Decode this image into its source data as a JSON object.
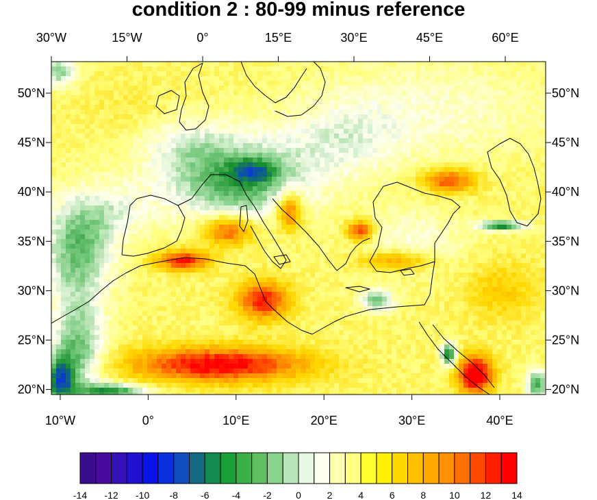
{
  "title": "condition 2 : 80-99 minus reference",
  "chart_data": {
    "type": "heatmap",
    "projection": "rotated lat-lon",
    "top_axis_labels": [
      "30°W",
      "15°W",
      "0°",
      "15°E",
      "30°E",
      "45°E",
      "60°E"
    ],
    "bottom_axis_labels": [
      "10°W",
      "0°",
      "10°E",
      "20°E",
      "30°E",
      "40°E"
    ],
    "left_axis_labels": [
      "50°N",
      "45°N",
      "40°N",
      "35°N",
      "30°N",
      "25°N",
      "20°N"
    ],
    "right_axis_labels": [
      "50°N",
      "45°N",
      "40°N",
      "35°N",
      "30°N",
      "25°N",
      "20°N"
    ],
    "x_range": [
      -11,
      45
    ],
    "lat_range": [
      19.5,
      53
    ],
    "colorbar": {
      "tick_labels": [
        "-14",
        "-12",
        "-10",
        "-8",
        "-6",
        "-4",
        "-2",
        "0",
        "2",
        "4",
        "6",
        "8",
        "10",
        "12",
        "14"
      ],
      "tick_values": [
        -14,
        -12,
        -10,
        -8,
        -6,
        -4,
        -2,
        0,
        2,
        4,
        6,
        8,
        10,
        12,
        14
      ],
      "colors": [
        "#3b0c8c",
        "#4a0aa0",
        "#3512b8",
        "#2010d0",
        "#0a14e8",
        "#0a32dc",
        "#104ec0",
        "#136a80",
        "#158a50",
        "#17a035",
        "#3cb044",
        "#5ec060",
        "#8ad38c",
        "#b8e4b8",
        "#e8f6e4",
        "#ffffee",
        "#ffffb0",
        "#ffff80",
        "#ffff30",
        "#fff000",
        "#ffd800",
        "#ffc000",
        "#ffa800",
        "#ff9000",
        "#ff7000",
        "#ff4800",
        "#ff2000",
        "#ff0000"
      ]
    },
    "field_color_scale": {
      "stops": [
        -14,
        -9,
        -6,
        -3,
        0,
        3,
        6,
        9,
        13
      ],
      "colors": [
        "#1010d8",
        "#0a40c8",
        "#18902c",
        "#7acb80",
        "#fdfff0",
        "#ffff80",
        "#ffd800",
        "#ff9800",
        "#ff0000"
      ]
    },
    "field": {
      "base": 3.5,
      "features": [
        {
          "x": 10,
          "lat": 41,
          "rx": 8,
          "rlat": 4,
          "v": -8
        },
        {
          "x": 12,
          "lat": 42,
          "rx": 2.5,
          "rlat": 1.2,
          "v": -5
        },
        {
          "x": 4,
          "lat": 45,
          "rx": 6,
          "rlat": 3,
          "v": -3
        },
        {
          "x": 22,
          "lat": 45,
          "rx": 7,
          "rlat": 4,
          "v": -3
        },
        {
          "x": 32,
          "lat": 48,
          "rx": 14,
          "rlat": 5,
          "v": -2.5
        },
        {
          "x": -10,
          "lat": 52,
          "rx": 2,
          "rlat": 1.5,
          "v": -6
        },
        {
          "x": -8,
          "lat": 34,
          "rx": 4,
          "rlat": 5,
          "v": -7
        },
        {
          "x": -4,
          "lat": 38,
          "rx": 5,
          "rlat": 3,
          "v": -3
        },
        {
          "x": -8,
          "lat": 24,
          "rx": 3,
          "rlat": 5,
          "v": -7
        },
        {
          "x": -10,
          "lat": 21,
          "rx": 1.6,
          "rlat": 2.2,
          "v": -10
        },
        {
          "x": -4,
          "lat": 19.8,
          "rx": 4,
          "rlat": 0.8,
          "v": -9
        },
        {
          "x": 30,
          "lat": 35,
          "rx": 6,
          "rlat": 3,
          "v": -3
        },
        {
          "x": 44,
          "lat": 20.5,
          "rx": 1.2,
          "rlat": 1.5,
          "v": -8
        },
        {
          "x": 34,
          "lat": 23.5,
          "rx": 0.9,
          "rlat": 1.2,
          "v": -10
        },
        {
          "x": 26,
          "lat": 29,
          "rx": 1.8,
          "rlat": 1.2,
          "v": -7
        },
        {
          "x": 40,
          "lat": 36.5,
          "rx": 2.5,
          "rlat": 0.5,
          "v": -10
        },
        {
          "x": 8,
          "lat": 22.5,
          "rx": 10,
          "rlat": 1.8,
          "v": 10
        },
        {
          "x": 4,
          "lat": 33,
          "rx": 3,
          "rlat": 1,
          "v": 9
        },
        {
          "x": 13,
          "lat": 29,
          "rx": 3,
          "rlat": 2,
          "v": 9
        },
        {
          "x": 9,
          "lat": 36,
          "rx": 3,
          "rlat": 1.5,
          "v": 8
        },
        {
          "x": 16,
          "lat": 38,
          "rx": 1.5,
          "rlat": 2,
          "v": 8
        },
        {
          "x": 37,
          "lat": 21.5,
          "rx": 2,
          "rlat": 2,
          "v": 12
        },
        {
          "x": 24,
          "lat": 36,
          "rx": 1.5,
          "rlat": 1,
          "v": 9
        },
        {
          "x": 28,
          "lat": 33,
          "rx": 4,
          "rlat": 1,
          "v": 6
        },
        {
          "x": 34,
          "lat": 41,
          "rx": 3,
          "rlat": 1.2,
          "v": 8
        },
        {
          "x": 40,
          "lat": 30,
          "rx": 4,
          "rlat": 3,
          "v": 3
        },
        {
          "x": -2,
          "lat": 48,
          "rx": 6,
          "rlat": 3,
          "v": 1
        }
      ]
    }
  }
}
